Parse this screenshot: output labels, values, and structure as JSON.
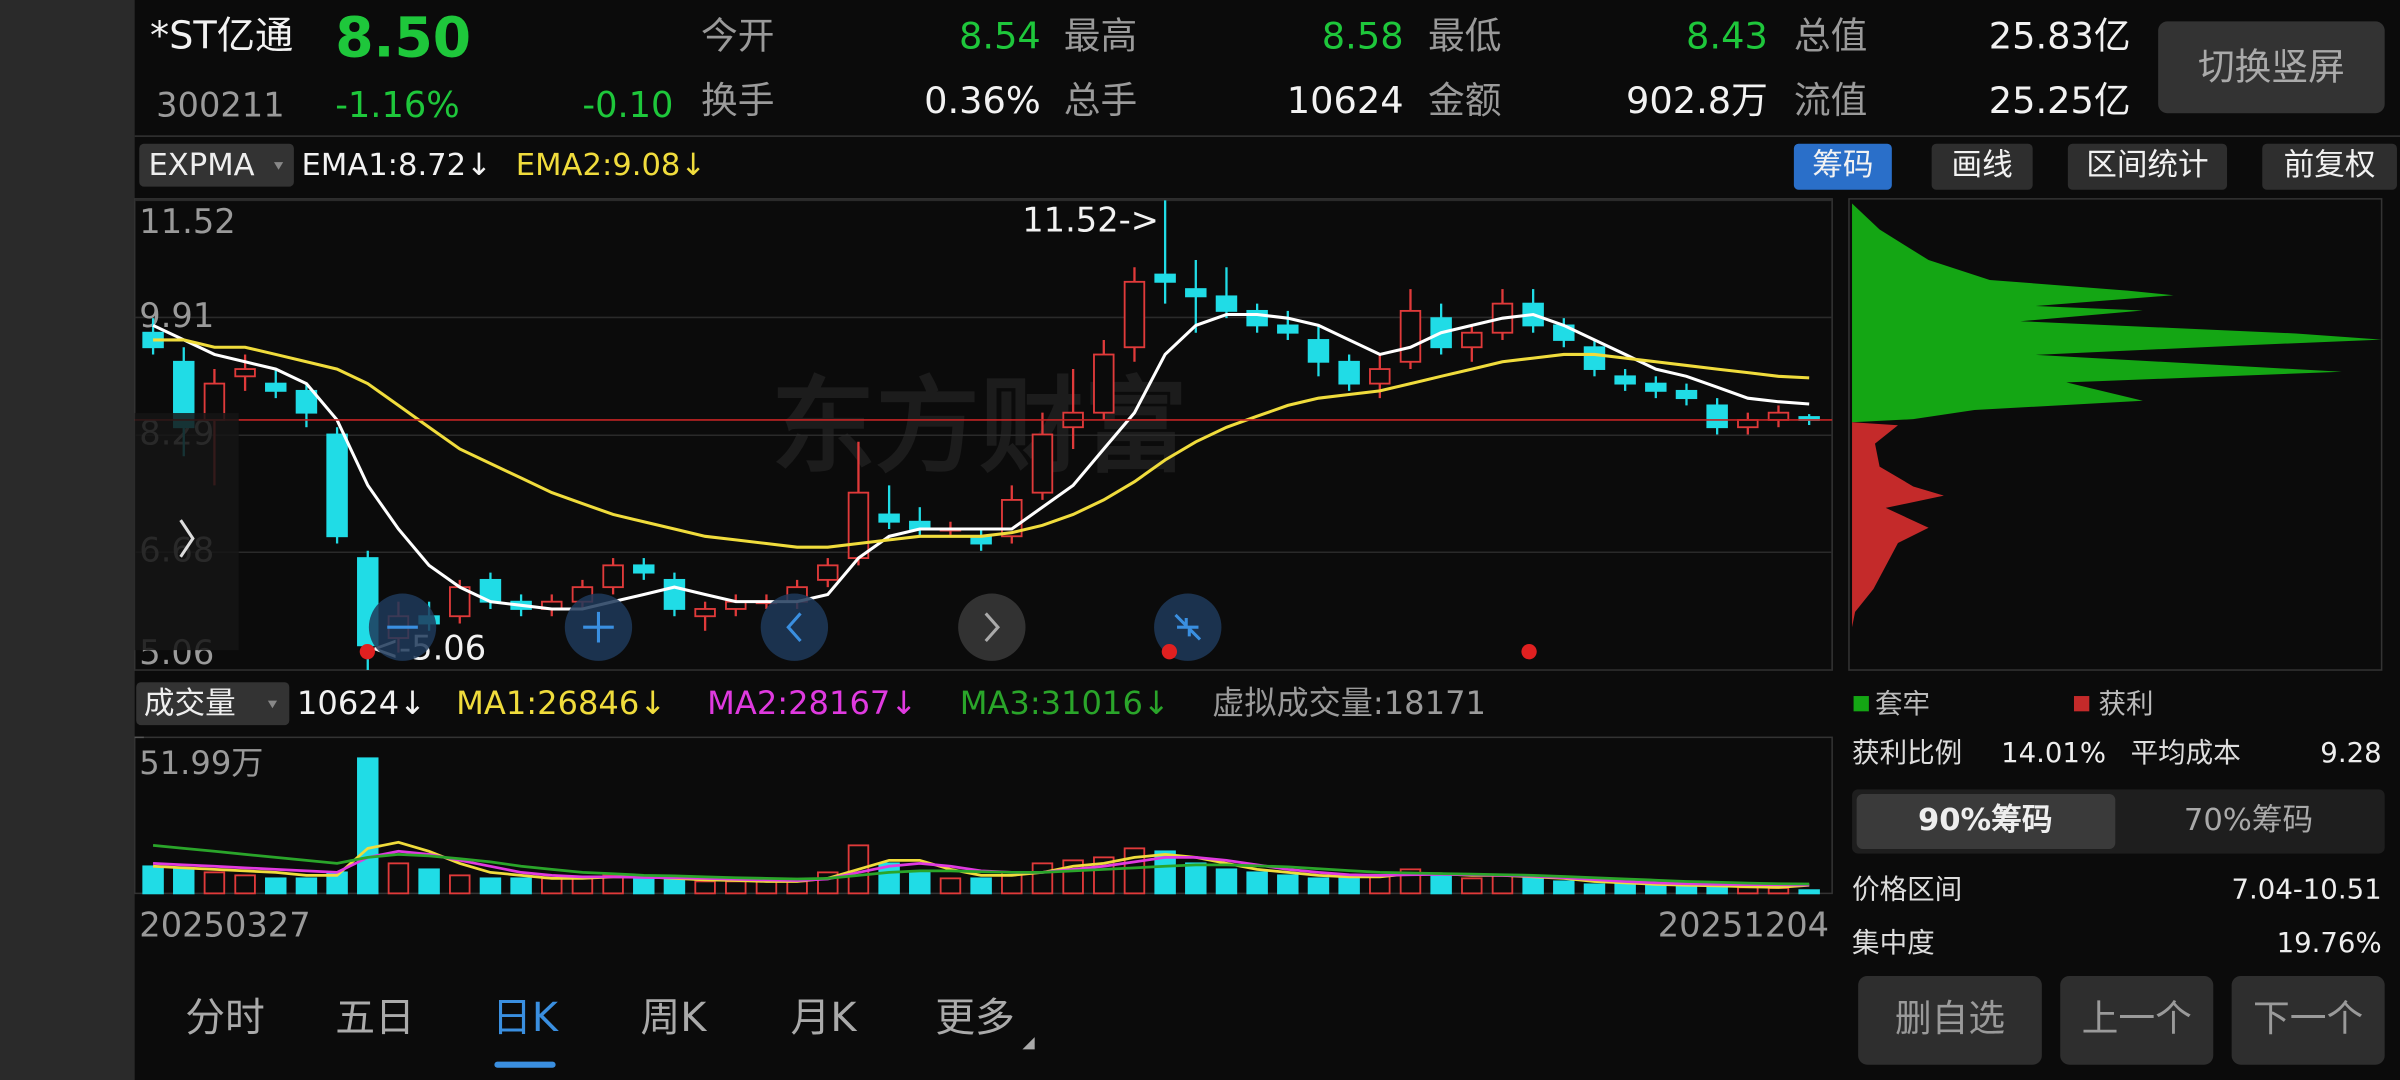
{
  "header": {
    "name": "*ST亿通",
    "price": "8.50",
    "code": "300211",
    "change_pct": "-1.16%",
    "change": "-0.10",
    "stats": [
      {
        "label": "今开",
        "value": "8.54",
        "color": "#1ec73b"
      },
      {
        "label": "最高",
        "value": "8.58",
        "color": "#1ec73b"
      },
      {
        "label": "最低",
        "value": "8.43",
        "color": "#1ec73b"
      },
      {
        "label": "总值",
        "value": "25.83亿",
        "color": "#f2f2f2"
      },
      {
        "label": "换手",
        "value": "0.36%",
        "color": "#f2f2f2"
      },
      {
        "label": "总手",
        "value": "10624",
        "color": "#f2f2f2"
      },
      {
        "label": "金额",
        "value": "902.8万",
        "color": "#f2f2f2"
      },
      {
        "label": "流值",
        "value": "25.25亿",
        "color": "#f2f2f2"
      }
    ],
    "rotate_button": "切换竖屏"
  },
  "indicator_bar": {
    "name": "EXPMA",
    "ema1": "EMA1:8.72↓",
    "ema2": "EMA2:9.08↓",
    "buttons": [
      "筹码",
      "画线",
      "区间统计",
      "前复权"
    ]
  },
  "volume_bar": {
    "name": "成交量",
    "current": "10624↓",
    "ma1": "MA1:26846↓",
    "ma2": "MA2:28167↓",
    "ma3": "MA3:31016↓",
    "virtual": "虚拟成交量:18171"
  },
  "chart_data": [
    {
      "type": "candlestick",
      "watermark": "东方财富",
      "annotations": [
        {
          "text": "11.52->",
          "index": 33
        },
        {
          "text": "<-5.06",
          "index": 7
        }
      ],
      "up_color": "#e03a3a",
      "down_color": "#20dce6",
      "price_line_color": "#c42424",
      "open": [
        9.7,
        9.3,
        8.5,
        9.1,
        9.0,
        8.9,
        8.3,
        6.6,
        5.5,
        5.8,
        5.8,
        6.3,
        6.0,
        5.9,
        6.0,
        6.2,
        6.5,
        6.3,
        5.8,
        5.9,
        6.0,
        6.0,
        6.3,
        6.6,
        7.2,
        7.1,
        7.0,
        6.9,
        6.9,
        7.5,
        8.4,
        8.6,
        9.5,
        10.5,
        10.3,
        10.2,
        10.0,
        9.8,
        9.6,
        9.3,
        9.0,
        9.3,
        9.9,
        9.5,
        9.7,
        10.1,
        9.8,
        9.5,
        9.1,
        9.0,
        8.9,
        8.7,
        8.4,
        8.5,
        8.54
      ],
      "high": [
        9.9,
        9.5,
        9.2,
        9.4,
        9.2,
        9.0,
        8.4,
        6.7,
        6.0,
        6.0,
        6.3,
        6.4,
        6.1,
        6.1,
        6.3,
        6.6,
        6.6,
        6.4,
        6.0,
        6.1,
        6.1,
        6.3,
        6.6,
        8.2,
        7.6,
        7.3,
        7.1,
        7.0,
        7.6,
        8.6,
        9.2,
        9.6,
        10.6,
        11.52,
        10.7,
        10.6,
        10.1,
        10.0,
        9.8,
        9.4,
        9.4,
        10.3,
        10.1,
        9.8,
        10.3,
        10.3,
        9.9,
        9.6,
        9.2,
        9.1,
        9.0,
        8.8,
        8.6,
        8.7,
        8.58
      ],
      "low": [
        9.4,
        8.0,
        7.6,
        8.9,
        8.8,
        8.4,
        6.8,
        5.06,
        5.3,
        5.6,
        5.7,
        5.9,
        5.8,
        5.8,
        5.9,
        6.1,
        6.3,
        5.8,
        5.6,
        5.8,
        5.9,
        5.9,
        6.2,
        6.5,
        7.0,
        6.9,
        6.9,
        6.7,
        6.8,
        7.4,
        8.1,
        8.5,
        9.3,
        10.1,
        9.7,
        9.9,
        9.7,
        9.6,
        9.1,
        8.9,
        8.8,
        9.2,
        9.4,
        9.3,
        9.6,
        9.7,
        9.5,
        9.1,
        8.9,
        8.8,
        8.7,
        8.3,
        8.3,
        8.4,
        8.43
      ],
      "close": [
        9.5,
        8.4,
        9.0,
        9.2,
        8.9,
        8.6,
        6.9,
        5.4,
        5.8,
        5.7,
        6.2,
        6.0,
        5.9,
        6.0,
        6.2,
        6.5,
        6.4,
        5.9,
        5.9,
        6.0,
        6.0,
        6.2,
        6.5,
        7.5,
        7.1,
        7.0,
        7.0,
        6.8,
        7.4,
        8.3,
        8.6,
        9.4,
        10.4,
        10.4,
        10.2,
        10.0,
        9.8,
        9.7,
        9.3,
        9.0,
        9.2,
        10.0,
        9.5,
        9.7,
        10.1,
        9.8,
        9.6,
        9.2,
        9.0,
        8.9,
        8.8,
        8.4,
        8.5,
        8.6,
        8.5
      ],
      "series": [
        {
          "color": "#ffffff",
          "values": [
            9.8,
            9.6,
            9.4,
            9.3,
            9.2,
            9.0,
            8.5,
            7.6,
            7.0,
            6.5,
            6.2,
            6.0,
            5.95,
            5.9,
            5.9,
            6.0,
            6.1,
            6.2,
            6.1,
            6.0,
            6.0,
            6.0,
            6.1,
            6.6,
            6.9,
            7.0,
            7.0,
            7.0,
            7.0,
            7.3,
            7.6,
            8.1,
            8.6,
            9.4,
            9.8,
            9.95,
            9.95,
            9.9,
            9.8,
            9.6,
            9.4,
            9.5,
            9.7,
            9.8,
            9.9,
            9.95,
            9.8,
            9.6,
            9.4,
            9.2,
            9.1,
            8.95,
            8.8,
            8.75,
            8.72
          ]
        },
        {
          "color": "#f0dc3c",
          "values": [
            9.6,
            9.6,
            9.5,
            9.5,
            9.4,
            9.3,
            9.2,
            9.0,
            8.7,
            8.4,
            8.1,
            7.9,
            7.7,
            7.5,
            7.35,
            7.2,
            7.1,
            7.0,
            6.9,
            6.85,
            6.8,
            6.75,
            6.75,
            6.8,
            6.85,
            6.9,
            6.9,
            6.9,
            6.95,
            7.05,
            7.2,
            7.4,
            7.65,
            7.95,
            8.2,
            8.4,
            8.55,
            8.7,
            8.8,
            8.85,
            8.9,
            9.0,
            9.1,
            9.2,
            9.3,
            9.35,
            9.4,
            9.4,
            9.35,
            9.3,
            9.25,
            9.2,
            9.15,
            9.1,
            9.08
          ]
        }
      ],
      "ylim": [
        5.06,
        11.52
      ],
      "yticks": [
        11.52,
        9.91,
        8.29,
        6.68,
        5.06
      ],
      "grid": true
    },
    {
      "type": "bar",
      "categories": [
        "20250327",
        null,
        null,
        null,
        null,
        null,
        null,
        null,
        null,
        null,
        null,
        null,
        null,
        null,
        null,
        null,
        null,
        null,
        null,
        null,
        null,
        null,
        null,
        null,
        null,
        null,
        null,
        null,
        null,
        null,
        null,
        null,
        null,
        null,
        null,
        null,
        null,
        null,
        null,
        null,
        null,
        null,
        null,
        null,
        null,
        null,
        null,
        null,
        null,
        null,
        null,
        null,
        null,
        null,
        "20251204"
      ],
      "values": [
        9,
        8,
        7,
        6,
        5,
        5,
        7,
        45,
        10,
        8,
        6,
        5,
        5,
        5,
        5,
        6,
        5,
        5,
        4,
        4,
        4,
        4,
        7,
        16,
        10,
        7,
        5,
        5,
        7,
        10,
        11,
        12,
        15,
        14,
        10,
        8,
        7,
        6,
        5,
        5,
        6,
        8,
        6,
        5,
        6,
        5,
        4,
        3,
        3,
        2.5,
        2.5,
        2.2,
        2,
        1.8,
        1.06
      ],
      "series": [
        {
          "color": "#f0dc3c",
          "values": [
            9,
            8.5,
            8,
            7.5,
            7,
            6,
            6,
            15,
            17,
            14,
            10,
            7,
            6,
            5,
            5,
            5.5,
            5.5,
            5,
            4.5,
            4.3,
            4,
            4,
            5,
            8,
            11,
            11,
            8,
            6,
            6,
            7,
            9,
            10,
            12,
            13,
            12,
            10,
            8,
            7,
            6,
            5.5,
            5.5,
            6.5,
            6.5,
            6,
            6,
            5.5,
            5,
            4,
            3.5,
            3,
            2.7,
            2.5,
            2.2,
            2,
            2.68
          ]
        },
        {
          "color": "#e03ae0",
          "values": [
            10,
            9.5,
            9,
            8.5,
            8,
            7.5,
            7,
            12,
            14,
            13,
            11,
            9,
            7,
            6,
            5.5,
            5.5,
            5.3,
            5.2,
            5,
            4.7,
            4.5,
            4.3,
            4.8,
            7,
            9,
            10,
            9,
            7.5,
            7,
            7,
            8,
            9,
            10.5,
            12,
            12,
            11,
            9.5,
            8,
            7,
            6.2,
            6,
            6.2,
            6.3,
            6.2,
            6,
            5.7,
            5.2,
            4.6,
            4,
            3.5,
            3.2,
            3,
            2.9,
            2.85,
            2.82
          ]
        },
        {
          "color": "#2aa52a",
          "values": [
            16,
            15,
            14,
            13,
            12,
            11,
            10,
            12,
            13,
            12.5,
            11.5,
            10.5,
            9,
            8,
            7,
            6.5,
            6,
            5.8,
            5.5,
            5.2,
            5,
            4.8,
            5,
            6,
            7,
            7.5,
            7.5,
            7.2,
            7,
            7,
            7.5,
            8,
            8.5,
            9,
            9.5,
            9.5,
            9.2,
            8.8,
            8.2,
            7.6,
            7,
            6.8,
            6.6,
            6.4,
            6.2,
            6,
            5.6,
            5.2,
            4.8,
            4.4,
            4,
            3.7,
            3.4,
            3.2,
            3.1
          ]
        }
      ],
      "ylim": [
        0,
        51.99
      ],
      "yticks": [
        {
          "value": 51.99,
          "label": "51.99万"
        }
      ]
    }
  ],
  "chip_panel": {
    "legend": [
      "套牢",
      "获利"
    ],
    "profit_label": "获利比例",
    "profit_value": "14.01%",
    "cost_label": "平均成本",
    "cost_value": "9.28",
    "tabs": [
      "90%筹码",
      "70%筹码"
    ],
    "range_label": "价格区间",
    "range_value": "7.04-10.51",
    "concentration_label": "集中度",
    "concentration_value": "19.76%",
    "buttons": [
      "删自选",
      "上一个",
      "下一个"
    ]
  },
  "tabs": {
    "items": [
      "分时",
      "五日",
      "日K",
      "周K",
      "月K",
      "更多"
    ],
    "active": 2
  }
}
